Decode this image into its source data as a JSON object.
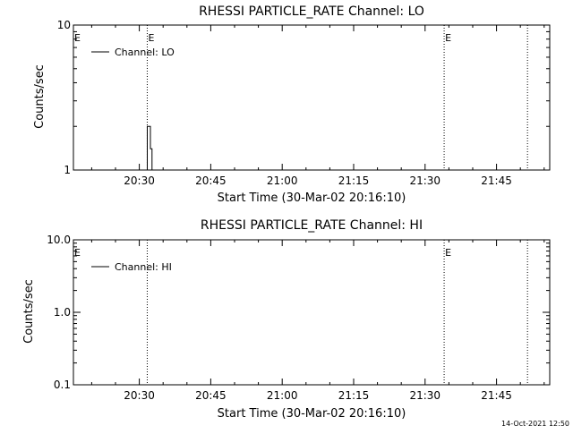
{
  "chart_data": [
    {
      "type": "line",
      "title": "RHESSI PARTICLE_RATE Channel: LO",
      "xlabel": "Start Time (30-Mar-02 20:16:10)",
      "ylabel": "Counts/sec",
      "yscale": "log",
      "ylim": [
        1,
        10
      ],
      "xlim": [
        "20:16:10",
        "21:56:10"
      ],
      "x_ticks": [
        "20:30",
        "20:45",
        "21:00",
        "21:15",
        "21:30",
        "21:45"
      ],
      "y_ticks": [
        "1",
        "10"
      ],
      "legend": {
        "entry": "Channel: LO",
        "placement": "top-left"
      },
      "vlines": [
        {
          "x": "20:31:40",
          "label": "E"
        },
        {
          "x": "21:34:00",
          "label": "E"
        },
        {
          "x": "21:51:30",
          "label": ""
        }
      ],
      "edge_markers": [
        {
          "x": "20:16:10",
          "label": "E"
        }
      ],
      "series": [
        {
          "name": "Channel: LO",
          "x": [
            "20:31:40",
            "20:31:40",
            "20:32:20",
            "20:32:20",
            "20:32:40",
            "20:32:40"
          ],
          "y": [
            1,
            2,
            2,
            1.4,
            1.4,
            1
          ]
        }
      ],
      "grid": false
    },
    {
      "type": "line",
      "title": "RHESSI PARTICLE_RATE Channel: HI",
      "xlabel": "Start Time (30-Mar-02 20:16:10)",
      "ylabel": "Counts/sec",
      "yscale": "log",
      "ylim": [
        0.1,
        10
      ],
      "xlim": [
        "20:16:10",
        "21:56:10"
      ],
      "x_ticks": [
        "20:30",
        "20:45",
        "21:00",
        "21:15",
        "21:30",
        "21:45"
      ],
      "y_ticks": [
        "0.1",
        "1.0",
        "10.0"
      ],
      "legend": {
        "entry": "Channel: HI",
        "placement": "top-left"
      },
      "vlines": [
        {
          "x": "20:31:40",
          "label": ""
        },
        {
          "x": "21:34:00",
          "label": "E"
        },
        {
          "x": "21:51:30",
          "label": ""
        }
      ],
      "edge_markers": [
        {
          "x": "20:16:10",
          "label": "E"
        }
      ],
      "series": [
        {
          "name": "Channel: HI",
          "x": [],
          "y": []
        }
      ],
      "grid": false
    }
  ],
  "timestamp": "14-Oct-2021 12:50"
}
